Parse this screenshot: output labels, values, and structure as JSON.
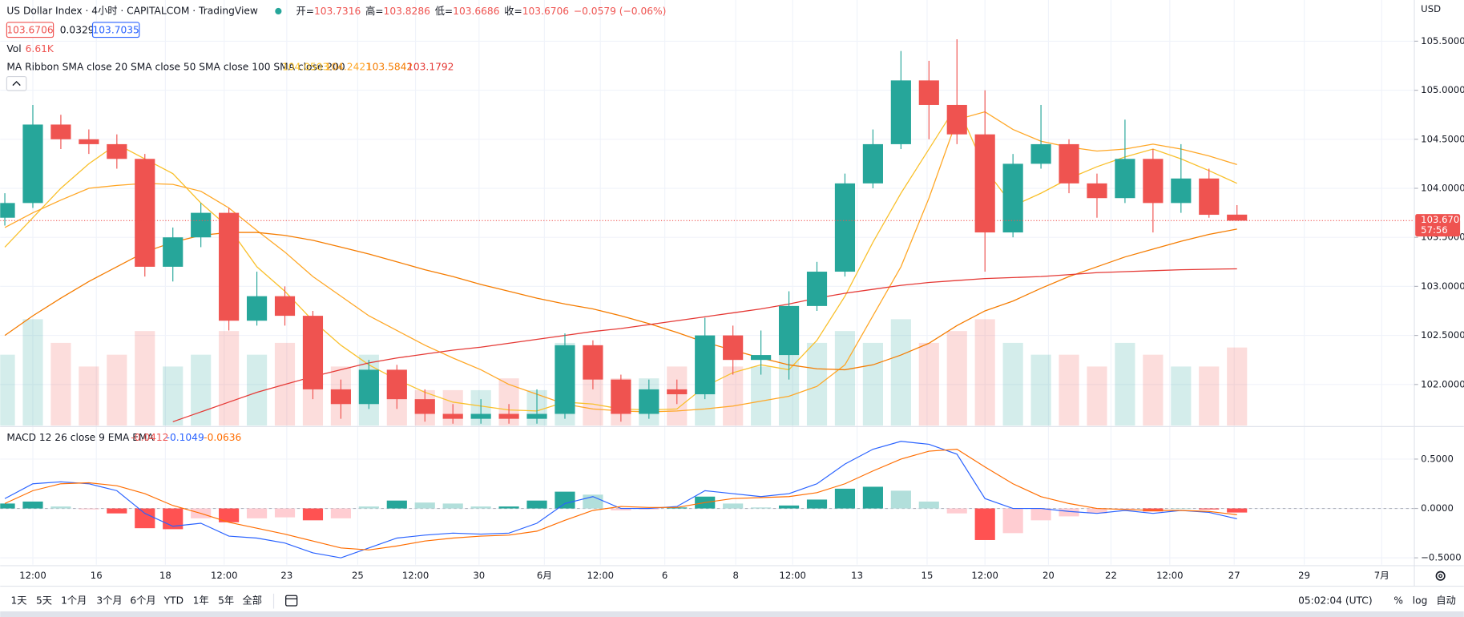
{
  "header": {
    "title": "US Dollar Index · 4小时 · CAPITALCOM · TradingView",
    "ohlc_labels": [
      "开=",
      "高=",
      "低=",
      "收="
    ],
    "change": "−0.0579 (−0.06%)"
  },
  "quote": {
    "bid": 103.6706,
    "spread": 0.0329,
    "ask": 103.7035
  },
  "chart_data": {
    "type": "candlestick",
    "currency": "USD",
    "x_labels": [
      "12:00",
      "16",
      "18",
      "12:00",
      "23",
      "25",
      "12:00",
      "30",
      "6月",
      "12:00",
      "6",
      "8",
      "12:00",
      "13",
      "15",
      "12:00",
      "20",
      "22",
      "12:00",
      "27",
      "29",
      "7月"
    ],
    "up_color": "#26a69a",
    "down_color": "#ef5350",
    "grid": true,
    "ylim": [
      101.58,
      105.92
    ],
    "yticks": [
      {
        "value": 105.5,
        "label": "105.5000"
      },
      {
        "value": 105.0,
        "label": "105.0000"
      },
      {
        "value": 104.5,
        "label": "104.5000"
      },
      {
        "value": 104.0,
        "label": "104.0000"
      },
      {
        "value": 103.5,
        "label": "103.5000"
      },
      {
        "value": 103.0,
        "label": "103.0000"
      },
      {
        "value": 102.5,
        "label": "102.5000"
      },
      {
        "value": 102.0,
        "label": "102.0000"
      }
    ],
    "countdown": "57:56",
    "candles": [
      [
        103.7,
        103.95,
        103.62,
        103.85
      ],
      [
        103.85,
        104.85,
        103.8,
        104.65
      ],
      [
        104.65,
        104.75,
        104.4,
        104.5
      ],
      [
        104.5,
        104.6,
        104.35,
        104.45
      ],
      [
        104.45,
        104.55,
        104.2,
        104.3
      ],
      [
        104.3,
        104.35,
        103.1,
        103.2
      ],
      [
        103.2,
        103.6,
        103.05,
        103.5
      ],
      [
        103.5,
        103.85,
        103.4,
        103.75
      ],
      [
        103.75,
        103.8,
        102.55,
        102.65
      ],
      [
        102.65,
        103.15,
        102.6,
        102.9
      ],
      [
        102.9,
        103.0,
        102.6,
        102.7
      ],
      [
        102.7,
        102.75,
        101.85,
        101.95
      ],
      [
        101.95,
        102.05,
        101.65,
        101.8
      ],
      [
        101.8,
        102.25,
        101.75,
        102.15
      ],
      [
        102.15,
        102.2,
        101.75,
        101.85
      ],
      [
        101.85,
        101.95,
        101.62,
        101.7
      ],
      [
        101.7,
        101.8,
        101.6,
        101.65
      ],
      [
        101.65,
        101.85,
        101.6,
        101.7
      ],
      [
        101.7,
        101.8,
        101.6,
        101.65
      ],
      [
        101.65,
        101.95,
        101.6,
        101.7
      ],
      [
        101.7,
        102.52,
        101.65,
        102.4
      ],
      [
        102.4,
        102.45,
        101.95,
        102.05
      ],
      [
        102.05,
        102.1,
        101.62,
        101.7
      ],
      [
        101.7,
        102.05,
        101.65,
        101.95
      ],
      [
        101.95,
        102.05,
        101.8,
        101.9
      ],
      [
        101.9,
        102.68,
        101.85,
        102.5
      ],
      [
        102.5,
        102.6,
        102.1,
        102.25
      ],
      [
        102.25,
        102.55,
        102.1,
        102.3
      ],
      [
        102.3,
        102.95,
        102.05,
        102.8
      ],
      [
        102.8,
        103.25,
        102.75,
        103.15
      ],
      [
        103.15,
        104.15,
        103.1,
        104.05
      ],
      [
        104.05,
        104.6,
        104.0,
        104.45
      ],
      [
        104.45,
        105.4,
        104.4,
        105.1
      ],
      [
        105.1,
        105.3,
        104.5,
        104.85
      ],
      [
        104.85,
        105.52,
        104.45,
        104.55
      ],
      [
        104.55,
        105.0,
        103.15,
        103.55
      ],
      [
        103.55,
        104.35,
        103.5,
        104.25
      ],
      [
        104.25,
        104.85,
        104.2,
        104.45
      ],
      [
        104.45,
        104.5,
        103.95,
        104.05
      ],
      [
        104.05,
        104.15,
        103.7,
        103.9
      ],
      [
        103.9,
        104.7,
        103.85,
        104.3
      ],
      [
        104.3,
        104.4,
        103.55,
        103.85
      ],
      [
        103.85,
        104.45,
        103.75,
        104.1
      ],
      [
        104.1,
        104.2,
        103.7,
        103.73
      ],
      [
        103.7316,
        103.8286,
        103.6686,
        103.6706
      ]
    ],
    "volume": {
      "name": "Vol",
      "ylim": [
        0,
        36
      ],
      "values": [
        6,
        9,
        7,
        5,
        6,
        8,
        5,
        6,
        8,
        6,
        7,
        8,
        5,
        6,
        4,
        3,
        3,
        3,
        4,
        3,
        7,
        5,
        4,
        4,
        5,
        6,
        5,
        5,
        6,
        7,
        8,
        7,
        9,
        7,
        8,
        9,
        7,
        6,
        6,
        5,
        7,
        6,
        5,
        5,
        6.61
      ],
      "value_labels": [
        null,
        null,
        null,
        null,
        null,
        null,
        null,
        null,
        null,
        null,
        null,
        null,
        null,
        null,
        null,
        null,
        null,
        null,
        null,
        null,
        null,
        null,
        null,
        null,
        null,
        null,
        null,
        null,
        null,
        null,
        null,
        null,
        null,
        null,
        null,
        null,
        null,
        null,
        null,
        null,
        null,
        null,
        null,
        null,
        "6.61K"
      ]
    },
    "ma_ribbon": {
      "name": "MA Ribbon SMA close 20 SMA close 50 SMA close 100 SMA close 200",
      "series": [
        {
          "color": "#f9c02b",
          "values": [
            103.4,
            103.7,
            104.0,
            104.25,
            104.45,
            104.3,
            104.15,
            103.85,
            103.6,
            103.2,
            102.95,
            102.65,
            102.4,
            102.2,
            102.05,
            101.92,
            101.82,
            101.78,
            101.74,
            101.73,
            101.82,
            101.8,
            101.75,
            101.74,
            101.75,
            101.98,
            102.12,
            102.2,
            102.15,
            102.45,
            102.9,
            103.45,
            103.95,
            104.4,
            104.85,
            104.2,
            103.82,
            103.95,
            104.1,
            104.22,
            104.32,
            104.4,
            104.3,
            104.18,
            104.0503
          ]
        },
        {
          "color": "#ffa726",
          "values": [
            103.6,
            103.75,
            103.88,
            104.0,
            104.03,
            104.05,
            104.04,
            103.97,
            103.8,
            103.57,
            103.35,
            103.1,
            102.9,
            102.7,
            102.55,
            102.4,
            102.27,
            102.15,
            102.0,
            101.9,
            101.8,
            101.75,
            101.73,
            101.72,
            101.73,
            101.75,
            101.78,
            101.83,
            101.88,
            101.98,
            102.2,
            102.7,
            103.2,
            103.9,
            104.7,
            104.78,
            104.6,
            104.48,
            104.42,
            104.38,
            104.4,
            104.45,
            104.4,
            104.33,
            104.2421
          ]
        },
        {
          "color": "#f57c00",
          "values": [
            102.5,
            102.7,
            102.88,
            103.05,
            103.2,
            103.35,
            103.45,
            103.52,
            103.55,
            103.55,
            103.52,
            103.47,
            103.4,
            103.33,
            103.25,
            103.17,
            103.1,
            103.02,
            102.95,
            102.88,
            102.82,
            102.77,
            102.7,
            102.62,
            102.53,
            102.43,
            102.35,
            102.27,
            102.2,
            102.16,
            102.15,
            102.2,
            102.3,
            102.42,
            102.6,
            102.75,
            102.85,
            102.98,
            103.1,
            103.2,
            103.3,
            103.38,
            103.46,
            103.53,
            103.5842
          ]
        },
        {
          "color": "#e53935",
          "values": [
            null,
            null,
            null,
            null,
            null,
            null,
            101.62,
            101.72,
            101.82,
            101.92,
            102.0,
            102.08,
            102.15,
            102.22,
            102.27,
            102.31,
            102.35,
            102.38,
            102.42,
            102.46,
            102.5,
            102.54,
            102.57,
            102.61,
            102.65,
            102.69,
            102.73,
            102.77,
            102.82,
            102.88,
            102.93,
            102.97,
            103.01,
            103.04,
            103.06,
            103.08,
            103.09,
            103.1,
            103.12,
            103.14,
            103.15,
            103.16,
            103.17,
            103.175,
            103.1792
          ]
        }
      ]
    },
    "macd": {
      "name": "MACD 12 26 close 9 EMA EMA",
      "ylim": [
        -0.57,
        0.82
      ],
      "yticks": [
        {
          "value": 0.5,
          "label": "0.5000"
        },
        {
          "value": 0,
          "label": "0.0000"
        },
        {
          "value": -0.5,
          "label": "−0.5000"
        }
      ],
      "histogram": [
        0.05,
        0.07,
        0.02,
        -0.01,
        -0.05,
        -0.2,
        -0.21,
        -0.1,
        -0.14,
        -0.1,
        -0.09,
        -0.12,
        -0.1,
        0.02,
        0.08,
        0.06,
        0.05,
        0.02,
        0.02,
        0.08,
        0.17,
        0.14,
        -0.02,
        -0.01,
        0.01,
        0.12,
        0.05,
        0.01,
        0.03,
        0.09,
        0.2,
        0.22,
        0.18,
        0.07,
        -0.05,
        -0.32,
        -0.25,
        -0.12,
        -0.08,
        -0.05,
        -0.01,
        -0.03,
        0,
        -0.01,
        -0.0412
      ],
      "macd": {
        "color": "#2962ff",
        "values": [
          0.1,
          0.25,
          0.27,
          0.25,
          0.18,
          -0.05,
          -0.18,
          -0.15,
          -0.28,
          -0.3,
          -0.35,
          -0.45,
          -0.5,
          -0.4,
          -0.3,
          -0.27,
          -0.25,
          -0.26,
          -0.25,
          -0.15,
          0.05,
          0.12,
          0,
          0,
          0.02,
          0.18,
          0.15,
          0.12,
          0.15,
          0.25,
          0.45,
          0.6,
          0.68,
          0.65,
          0.55,
          0.1,
          0,
          0,
          -0.03,
          -0.05,
          -0.02,
          -0.05,
          -0.02,
          -0.04,
          -0.1049
        ]
      },
      "signal": {
        "color": "#ff6d00",
        "values": [
          0.05,
          0.18,
          0.25,
          0.26,
          0.23,
          0.15,
          0.03,
          -0.05,
          -0.14,
          -0.2,
          -0.26,
          -0.33,
          -0.4,
          -0.42,
          -0.38,
          -0.33,
          -0.3,
          -0.28,
          -0.27,
          -0.23,
          -0.12,
          -0.02,
          0.02,
          0.01,
          0.01,
          0.06,
          0.1,
          0.11,
          0.12,
          0.16,
          0.25,
          0.38,
          0.5,
          0.58,
          0.6,
          0.42,
          0.25,
          0.12,
          0.05,
          0,
          -0.01,
          -0.02,
          -0.02,
          -0.03,
          -0.0636
        ]
      }
    }
  },
  "toolbar": {
    "ranges": [
      "1天",
      "5天",
      "1个月",
      "3个月",
      "6个月",
      "YTD",
      "1年",
      "5年",
      "全部"
    ],
    "time": "05:02:04 (UTC)",
    "options": [
      "%",
      "log",
      "自动"
    ]
  }
}
